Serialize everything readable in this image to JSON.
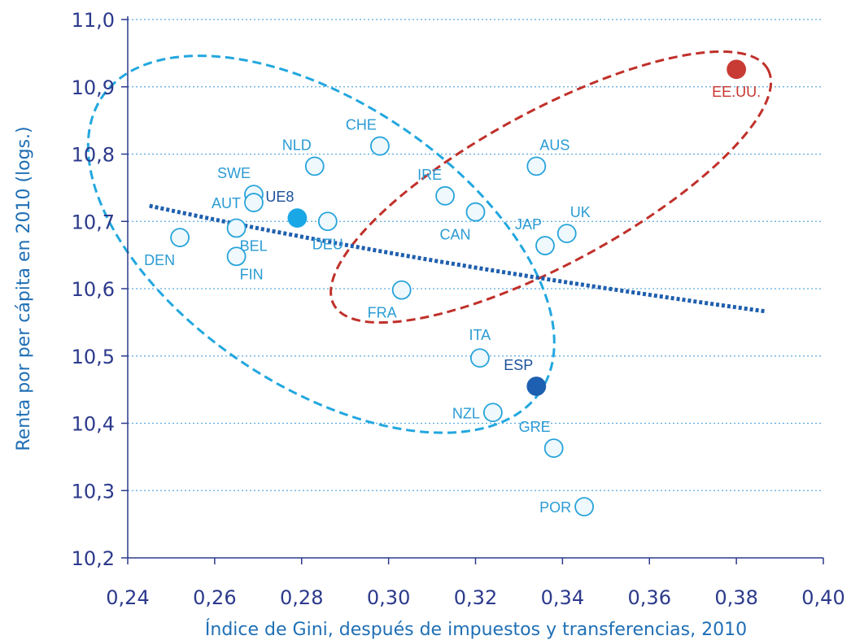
{
  "chart_data": {
    "type": "scatter",
    "xlabel": "Índice de Gini, después de impuestos y transferencias, 2010",
    "ylabel": "Renta por per cápita en 2010 (logs.)",
    "xlim": [
      0.24,
      0.4
    ],
    "ylim": [
      10.2,
      11.0
    ],
    "x_ticks": [
      {
        "value": 0.24,
        "label": "0,24"
      },
      {
        "value": 0.26,
        "label": "0,26"
      },
      {
        "value": 0.28,
        "label": "0,28"
      },
      {
        "value": 0.3,
        "label": "0,30"
      },
      {
        "value": 0.32,
        "label": "0,32"
      },
      {
        "value": 0.34,
        "label": "0,34"
      },
      {
        "value": 0.36,
        "label": "0,36"
      },
      {
        "value": 0.38,
        "label": "0,38"
      },
      {
        "value": 0.4,
        "label": "0,40"
      }
    ],
    "y_ticks": [
      {
        "value": 10.2,
        "label": "10,2"
      },
      {
        "value": 10.3,
        "label": "10,3"
      },
      {
        "value": 10.4,
        "label": "10,4"
      },
      {
        "value": 10.5,
        "label": "10,5"
      },
      {
        "value": 10.6,
        "label": "10,6"
      },
      {
        "value": 10.7,
        "label": "10,7"
      },
      {
        "value": 10.8,
        "label": "10,8"
      },
      {
        "value": 10.9,
        "label": "10,9"
      },
      {
        "value": 11.0,
        "label": "11,0"
      }
    ],
    "grid": "horizontal dotted",
    "points": [
      {
        "label": "DEN",
        "x": 0.252,
        "y": 10.676,
        "style": "open",
        "label_pos": "below-left"
      },
      {
        "label": "SWE",
        "x": 0.269,
        "y": 10.74,
        "style": "open",
        "label_pos": "above-left"
      },
      {
        "label": "AUT",
        "x": 0.269,
        "y": 10.728,
        "style": "open",
        "label_pos": "left"
      },
      {
        "label": "BEL",
        "x": 0.265,
        "y": 10.69,
        "style": "open",
        "label_pos": "below-right"
      },
      {
        "label": "FIN",
        "x": 0.265,
        "y": 10.648,
        "style": "open",
        "label_pos": "below-right"
      },
      {
        "label": "UE8",
        "x": 0.279,
        "y": 10.705,
        "style": "highlight",
        "label_pos": "above-left"
      },
      {
        "label": "NLD",
        "x": 0.283,
        "y": 10.782,
        "style": "open",
        "label_pos": "above-left"
      },
      {
        "label": "DEU",
        "x": 0.286,
        "y": 10.7,
        "style": "open",
        "label_pos": "below"
      },
      {
        "label": "CHE",
        "x": 0.298,
        "y": 10.812,
        "style": "open",
        "label_pos": "above-left"
      },
      {
        "label": "FRA",
        "x": 0.303,
        "y": 10.598,
        "style": "open",
        "label_pos": "below-left"
      },
      {
        "label": "IRE",
        "x": 0.313,
        "y": 10.738,
        "style": "open",
        "label_pos": "above-left"
      },
      {
        "label": "CAN",
        "x": 0.32,
        "y": 10.714,
        "style": "open",
        "label_pos": "below-left"
      },
      {
        "label": "ITA",
        "x": 0.321,
        "y": 10.497,
        "style": "open",
        "label_pos": "above"
      },
      {
        "label": "NZL",
        "x": 0.324,
        "y": 10.416,
        "style": "open",
        "label_pos": "left"
      },
      {
        "label": "ESP",
        "x": 0.334,
        "y": 10.455,
        "style": "spain",
        "label_pos": "above-left"
      },
      {
        "label": "AUS",
        "x": 0.334,
        "y": 10.782,
        "style": "open",
        "label_pos": "above-right"
      },
      {
        "label": "JAP",
        "x": 0.336,
        "y": 10.664,
        "style": "open",
        "label_pos": "above-left"
      },
      {
        "label": "UK",
        "x": 0.341,
        "y": 10.682,
        "style": "open",
        "label_pos": "above-right"
      },
      {
        "label": "GRE",
        "x": 0.338,
        "y": 10.363,
        "style": "open",
        "label_pos": "above-left"
      },
      {
        "label": "POR",
        "x": 0.345,
        "y": 10.276,
        "style": "open",
        "label_pos": "left"
      },
      {
        "label": "EE.UU.",
        "x": 0.38,
        "y": 10.926,
        "style": "usa",
        "label_pos": "below"
      }
    ],
    "trend_line": {
      "style": "dotted",
      "color": "#1f5fae",
      "x_range": [
        0.245,
        0.387
      ]
    },
    "annotations": [
      {
        "shape": "dashed ellipse",
        "color": "#22a7df",
        "encloses": [
          "DEN",
          "SWE",
          "AUT",
          "BEL",
          "FIN",
          "UE8",
          "NLD",
          "DEU",
          "CHE",
          "FRA",
          "ITA",
          "NZL"
        ]
      },
      {
        "shape": "dashed ellipse",
        "color": "#c0302a",
        "encloses": [
          "EE.UU.",
          "IRE",
          "CAN",
          "AUS",
          "JAP",
          "UK"
        ]
      }
    ],
    "colors": {
      "axis": "#2c3a8c",
      "axis_title": "#1f6fb5",
      "grid": "#5aa9dd",
      "point_label": "#2a9bd4",
      "open_fill": "#eef8fd",
      "open_stroke": "#27a3da",
      "highlight_fill": "#1aa7e6",
      "spain_fill": "#1d5fb0",
      "usa_fill": "#c83b35",
      "usa_label": "#c8362e",
      "spain_label": "#1a4f9a",
      "ue8_label": "#1a4f9a"
    }
  }
}
